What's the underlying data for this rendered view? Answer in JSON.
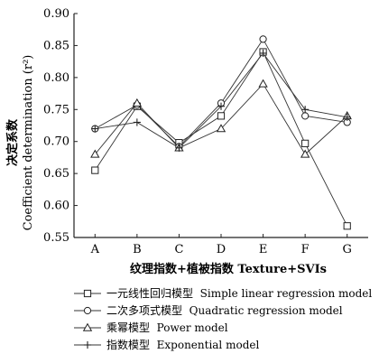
{
  "chart_data": {
    "type": "line",
    "categories": [
      "A",
      "B",
      "C",
      "D",
      "E",
      "F",
      "G"
    ],
    "xlabel": "纹理指数+植被指数 Texture+SVIs",
    "ylabel_cn": "决定系数",
    "ylabel_en": "Coefficient determination (r²)",
    "ylim": [
      0.55,
      0.9
    ],
    "yticks": [
      "0.55",
      "0.60",
      "0.65",
      "0.70",
      "0.75",
      "0.80",
      "0.85",
      "0.90"
    ],
    "grid": false,
    "legend_position": "bottom",
    "series": [
      {
        "name": "一元线性回归模型  Simple linear regression model",
        "marker": "square",
        "values": [
          0.655,
          0.755,
          0.698,
          0.74,
          0.84,
          0.697,
          0.568
        ]
      },
      {
        "name": "二次多项式模型  Quadratic regression model",
        "marker": "circle",
        "values": [
          0.72,
          0.757,
          0.692,
          0.76,
          0.86,
          0.74,
          0.73
        ]
      },
      {
        "name": "乘幂模型  Power model",
        "marker": "triangle",
        "values": [
          0.68,
          0.76,
          0.69,
          0.72,
          0.79,
          0.68,
          0.74
        ]
      },
      {
        "name": "指数模型  Exponential model",
        "marker": "plus",
        "values": [
          0.72,
          0.73,
          0.69,
          0.755,
          0.838,
          0.75,
          0.738
        ]
      }
    ]
  }
}
